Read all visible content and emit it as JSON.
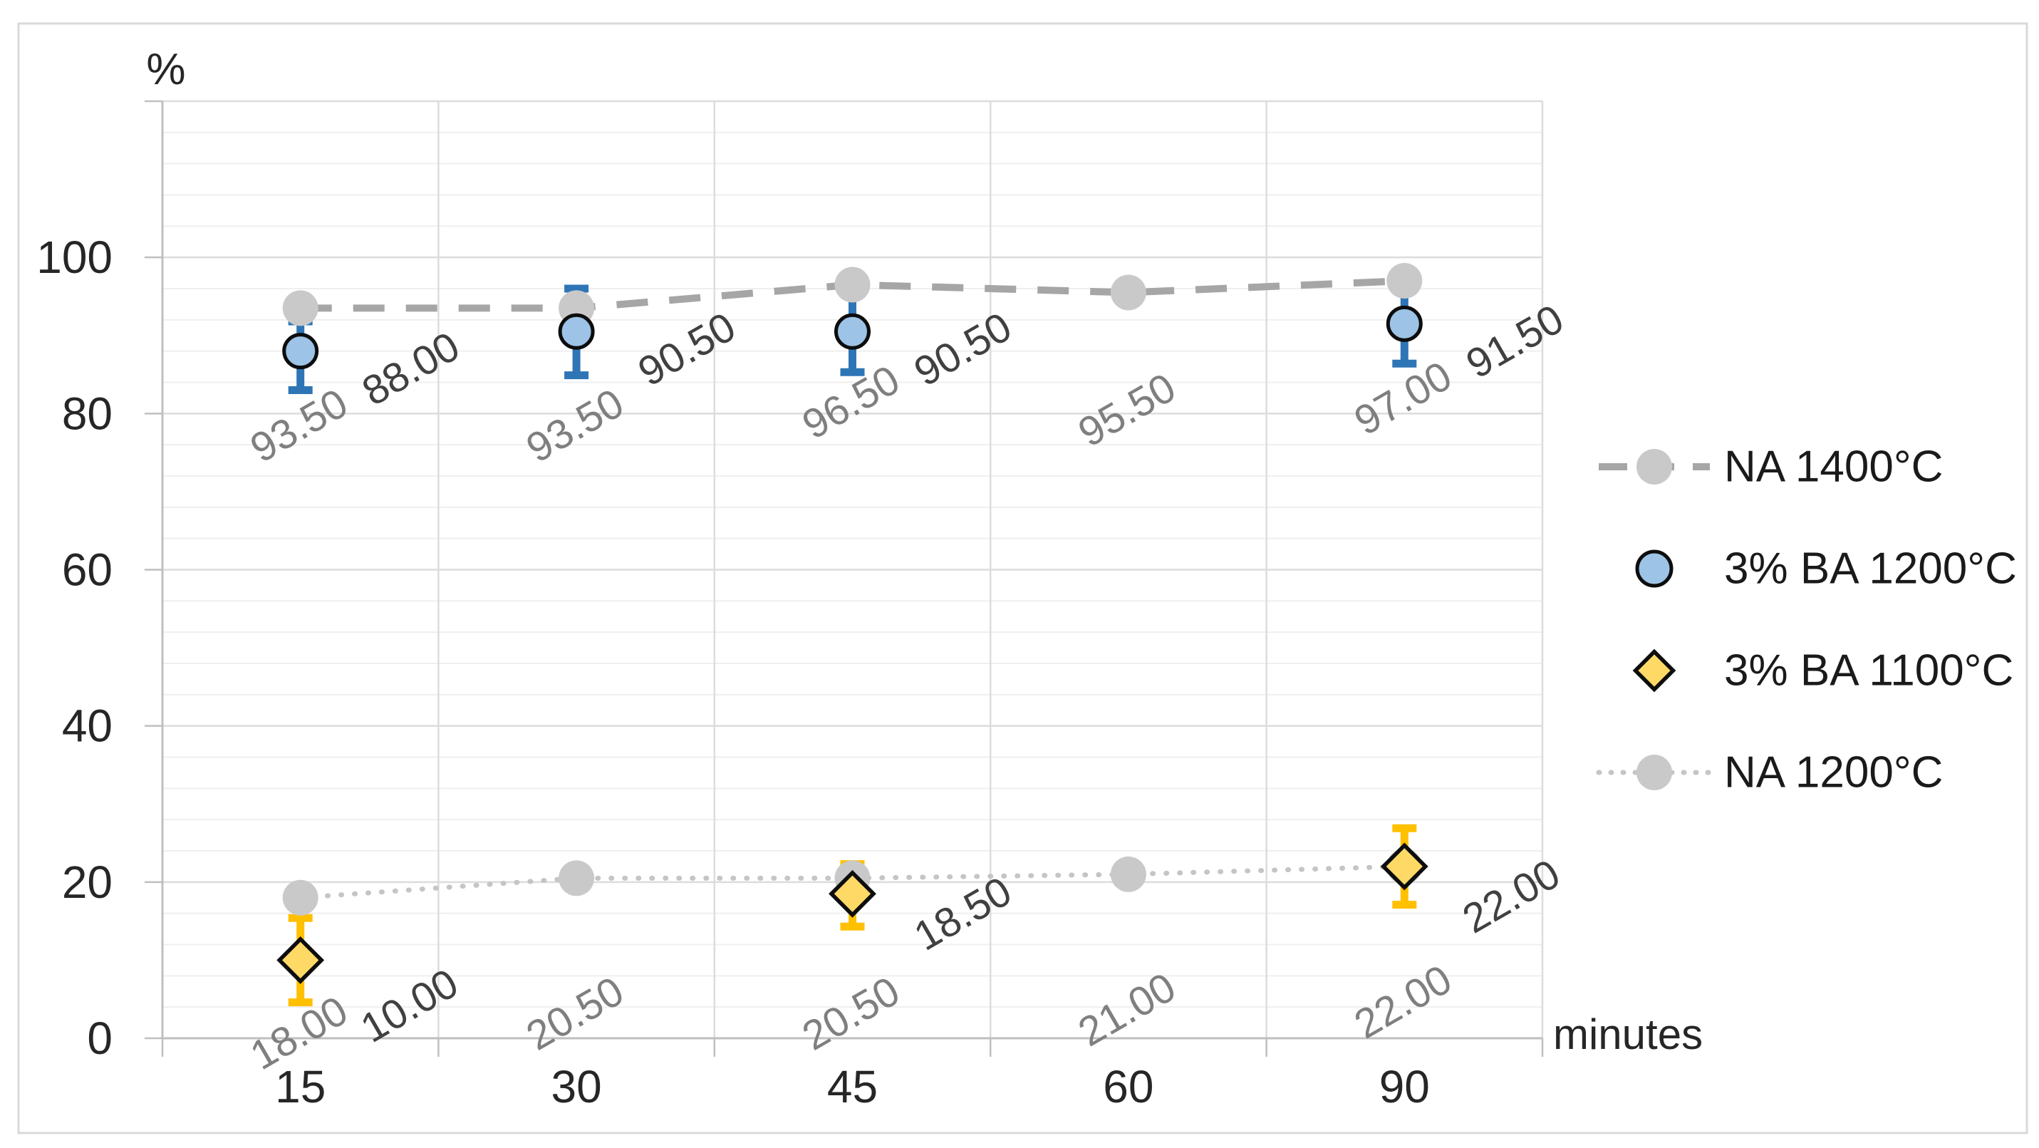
{
  "chart_data": {
    "type": "scatter",
    "title": "",
    "xlabel": "minutes",
    "ylabel": "%",
    "categories": [
      "15",
      "30",
      "45",
      "60",
      "90"
    ],
    "ylim": [
      0,
      120
    ],
    "y_major_unit": 20,
    "y_minor_unit": 4,
    "y_tick_labels": [
      "0",
      "20",
      "40",
      "60",
      "80",
      "100"
    ],
    "grid": true,
    "legend_position": "right",
    "colors": {
      "axis_line": "#BFBFBF",
      "major_grid": "#DCDCDC",
      "minor_grid": "#EFEFEF",
      "chart_border": "#D9D9D9",
      "axis_text": "#262626",
      "legend_text": "#1A1A1A",
      "gray_label": "#7F7F7F",
      "dark_label": "#404040"
    },
    "series": [
      {
        "name": "NA 1400°C",
        "draw": "line+marker",
        "line_style": "dashed",
        "line_color": "#A6A6A6",
        "marker": "circle",
        "marker_fill": "#C9C9C9",
        "values": [
          93.5,
          93.5,
          96.5,
          95.5,
          97.0
        ],
        "labels": [
          "93.50",
          "93.50",
          "96.50",
          "95.50",
          "97.00"
        ],
        "label_color": "#7F7F7F"
      },
      {
        "name": "3% BA 1200°C",
        "draw": "marker",
        "marker": "circle-outlined",
        "marker_fill": "#9DC3E6",
        "marker_outline": "#0D0D0D",
        "error_color": "#2E75B6",
        "values": [
          88.0,
          90.5,
          90.5,
          null,
          91.5
        ],
        "labels": [
          "88.00",
          "90.50",
          "90.50",
          null,
          "91.50"
        ],
        "label_color": "#404040",
        "error_low": [
          83.0,
          84.9,
          85.3,
          null,
          86.4
        ],
        "error_high": [
          91.8,
          96.0,
          95.7,
          null,
          96.4
        ]
      },
      {
        "name": "3% BA 1100°C",
        "draw": "marker",
        "marker": "diamond",
        "marker_fill": "#FFD966",
        "marker_outline": "#0D0D0D",
        "error_color": "#FFC000",
        "values": [
          10.0,
          null,
          18.5,
          null,
          22.0
        ],
        "labels": [
          "10.00",
          null,
          "18.50",
          null,
          "22.00"
        ],
        "label_color": "#404040",
        "error_low": [
          4.6,
          null,
          14.3,
          null,
          17.1
        ],
        "error_high": [
          15.4,
          null,
          22.3,
          null,
          26.9
        ]
      },
      {
        "name": "NA 1200°C",
        "draw": "line+marker",
        "line_style": "dotted",
        "line_color": "#C5C5C5",
        "marker": "circle",
        "marker_fill": "#C9C9C9",
        "values": [
          18.0,
          20.5,
          20.5,
          21.0,
          22.0
        ],
        "labels": [
          "18.00",
          "20.50",
          "20.50",
          "21.00",
          "22.00"
        ],
        "label_color": "#7F7F7F"
      }
    ]
  }
}
